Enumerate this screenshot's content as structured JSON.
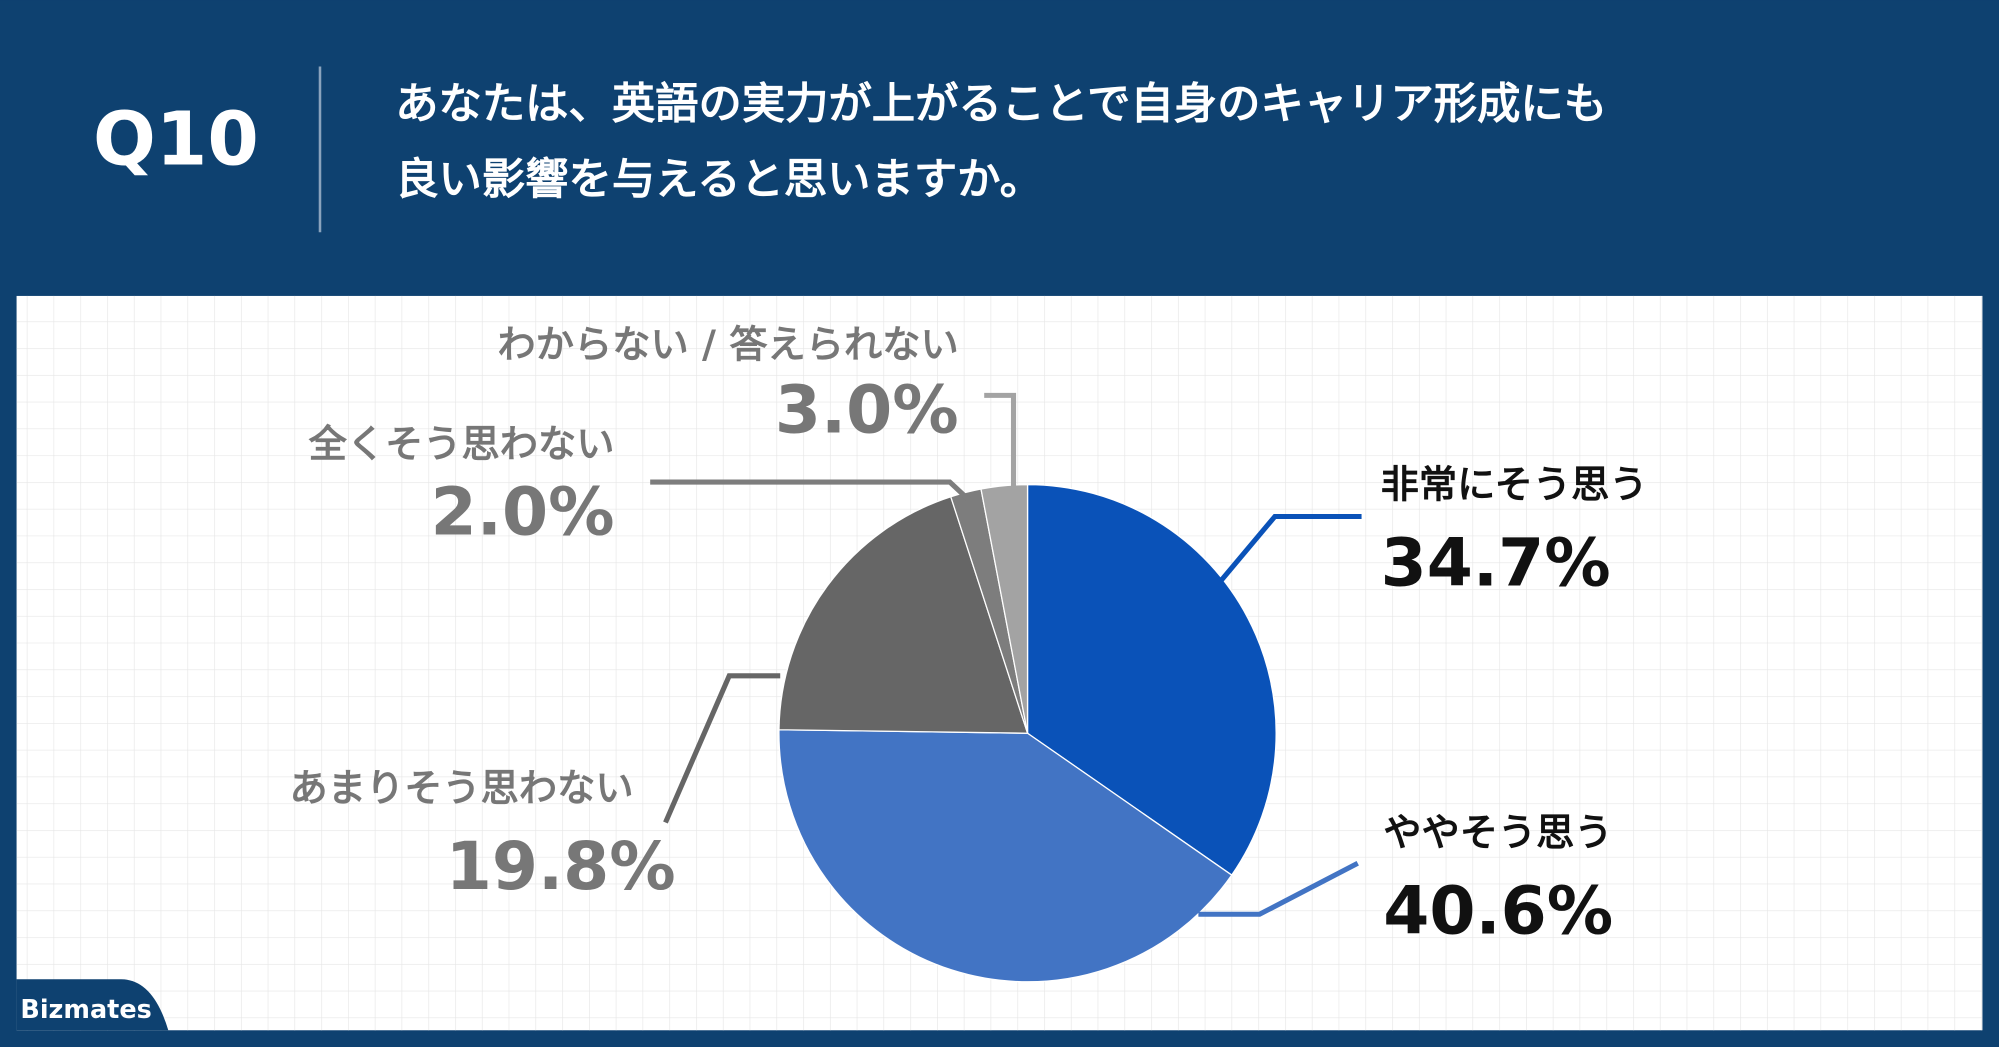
{
  "header": {
    "label": "Q10",
    "title": [
      "あなたは、英語の実力が上がることで自身のキャリア形成にも",
      "良い影響を与えると思いますか。"
    ]
  },
  "chart_data": {
    "type": "pie",
    "categories": [
      "非常にそう思う",
      "ややそう思う",
      "あまりそう思わない",
      "全くそう思わない",
      "わからない / 答えられない"
    ],
    "values": [
      34.7,
      40.6,
      19.8,
      2.0,
      3.0
    ],
    "value_labels": [
      "34.7%",
      "40.6%",
      "19.8%",
      "2.0%",
      "3.0%"
    ],
    "colors": [
      "#0a52b8",
      "#4274c4",
      "#666666",
      "#7d7d7d",
      "#a3a3a3"
    ],
    "label_colors": [
      "#111111",
      "#111111",
      "#777777",
      "#777777",
      "#777777"
    ]
  },
  "footer": {
    "logo": "Bizmates"
  }
}
